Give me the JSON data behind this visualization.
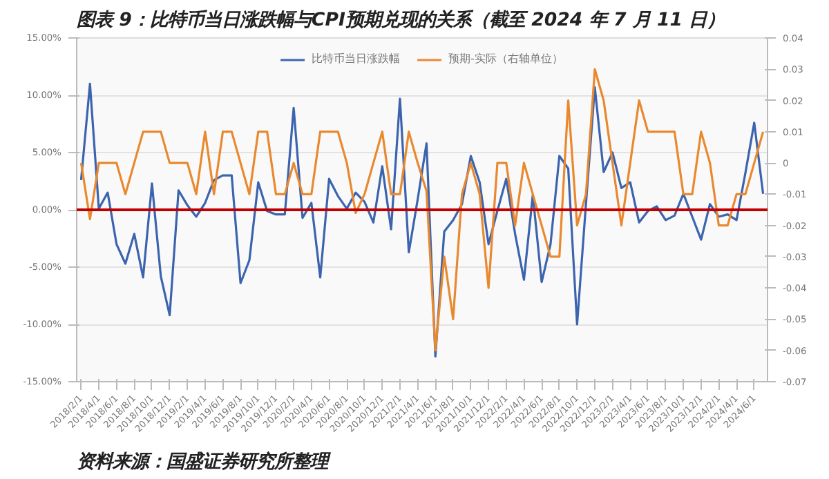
{
  "chart_data": {
    "type": "line",
    "title": "图表 9：比特币当日涨跌幅与CPI预期兑现的关系（截至 2024 年 7 月 11 日）",
    "categories": [
      "2018/2/1",
      null,
      "2018/4/1",
      null,
      "2018/6/1",
      null,
      "2018/8/1",
      null,
      "2018/10/1",
      null,
      "2018/12/1",
      null,
      "2019/2/1",
      null,
      "2019/4/1",
      null,
      "2019/6/1",
      null,
      "2019/8/1",
      null,
      "2019/10/1",
      null,
      "2019/12/1",
      null,
      "2020/2/1",
      null,
      "2020/4/1",
      null,
      "2020/6/1",
      null,
      "2020/8/1",
      null,
      "2020/10/1",
      null,
      "2020/12/1",
      null,
      "2021/2/1",
      null,
      "2021/4/1",
      null,
      "2021/6/1",
      null,
      "2021/8/1",
      null,
      "2021/10/1",
      null,
      "2021/12/1",
      null,
      "2022/2/1",
      null,
      "2022/4/1",
      null,
      "2022/6/1",
      null,
      "2022/8/1",
      null,
      "2022/10/1",
      null,
      "2022/12/1",
      null,
      "2023/2/1",
      null,
      "2023/4/1",
      null,
      "2023/6/1",
      null,
      "2023/8/1",
      null,
      "2023/10/1",
      null,
      "2023/12/1",
      null,
      "2024/2/1",
      null,
      "2024/4/1",
      null,
      "2024/6/1",
      null
    ],
    "series": [
      {
        "name": "比特币当日涨跌幅",
        "color": "#3c64ae",
        "values": [
          2.6,
          11.0,
          0.1,
          1.5,
          -3.0,
          -4.7,
          -2.1,
          -5.9,
          2.3,
          -5.8,
          -9.2,
          1.7,
          0.4,
          -0.6,
          0.6,
          2.6,
          3.0,
          3.0,
          -6.4,
          -4.4,
          2.4,
          -0.1,
          -0.4,
          -0.4,
          8.9,
          -0.7,
          0.6,
          -5.9,
          2.7,
          1.2,
          0.1,
          1.5,
          0.7,
          -1.1,
          3.8,
          -1.7,
          9.7,
          -3.7,
          0.9,
          5.8,
          -12.8,
          -1.9,
          -0.9,
          0.5,
          4.7,
          2.4,
          -3.0,
          -0.1,
          2.7,
          -2.1,
          -6.1,
          1.3,
          -6.3,
          -3.0,
          4.7,
          3.6,
          -10.0,
          0.5,
          10.7,
          3.3,
          5.0,
          1.9,
          2.4,
          -1.1,
          -0.1,
          0.3,
          -0.9,
          -0.5,
          1.4,
          -0.6,
          -2.6,
          0.5,
          -0.6,
          -0.4,
          -0.9,
          3.2,
          7.6,
          1.4
        ]
      },
      {
        "name": "预期-实际（右轴单位）",
        "color": "#e9892f",
        "axis": "y2",
        "values": [
          0.0,
          -0.018,
          0.0,
          0.0,
          0.0,
          -0.01,
          0.0,
          0.01,
          0.01,
          0.01,
          0.0,
          0.0,
          0.0,
          -0.01,
          0.01,
          -0.01,
          0.01,
          0.01,
          0.0,
          -0.01,
          0.01,
          0.01,
          -0.01,
          -0.01,
          0.0,
          -0.01,
          -0.01,
          0.01,
          0.01,
          0.01,
          0.0,
          -0.016,
          -0.01,
          0.0,
          0.01,
          -0.01,
          -0.01,
          0.01,
          0.0,
          -0.009,
          -0.06,
          -0.03,
          -0.05,
          -0.01,
          0.0,
          -0.01,
          -0.04,
          0.0,
          0.0,
          -0.02,
          0.0,
          -0.01,
          -0.02,
          -0.03,
          -0.03,
          0.02,
          -0.02,
          -0.01,
          0.03,
          0.02,
          0.0,
          -0.02,
          0.0,
          0.02,
          0.01,
          0.01,
          0.01,
          0.01,
          -0.01,
          -0.01,
          0.01,
          0.0,
          -0.02,
          -0.02,
          -0.01,
          -0.01,
          0.0,
          0.01
        ]
      }
    ],
    "ylim": [
      -15,
      15
    ],
    "yticks": [
      {
        "value": -15,
        "label": "-15.00%"
      },
      {
        "value": -10,
        "label": "-10.00%"
      },
      {
        "value": -5,
        "label": "-5.00%"
      },
      {
        "value": 0,
        "label": "0.00%"
      },
      {
        "value": 5,
        "label": "5.00%"
      },
      {
        "value": 10,
        "label": "10.00%"
      },
      {
        "value": 15,
        "label": "15.00%"
      }
    ],
    "y2lim": [
      -0.07,
      0.04
    ],
    "y2ticks": [
      -0.07,
      -0.06,
      -0.05,
      -0.04,
      -0.03,
      -0.02,
      -0.01,
      0,
      0.01,
      0.02,
      0.03,
      0.04
    ],
    "ref_lines": [
      {
        "axis": "y",
        "value": 0,
        "color": "#c00000"
      }
    ],
    "grid": "y",
    "legend": "top",
    "line_style": "solid",
    "marker": "none",
    "annotations": [
      "资料来源：国盛证券研究所整理"
    ]
  }
}
